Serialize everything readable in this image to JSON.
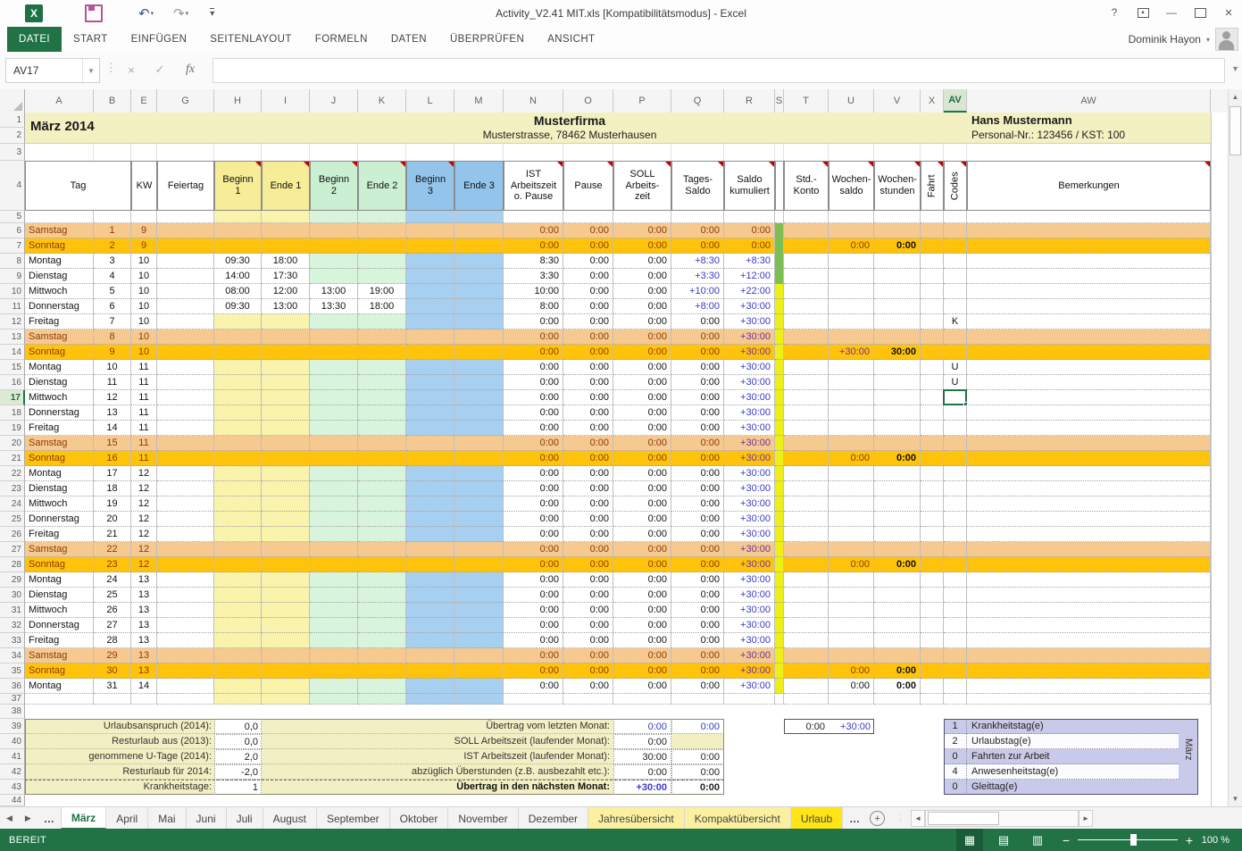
{
  "window": {
    "title": "Activity_V2.41 MIT.xls [Kompatibilitätsmodus] - Excel",
    "user": "Dominik Hayon",
    "controls": {
      "help": "?",
      "minimize": "—",
      "close": "×"
    }
  },
  "ribbon": {
    "active_tab": "DATEI",
    "tabs": [
      "DATEI",
      "START",
      "EINFÜGEN",
      "SEITENLAYOUT",
      "FORMELN",
      "DATEN",
      "ÜBERPRÜFEN",
      "ANSICHT"
    ]
  },
  "formula_bar": {
    "name_box": "AV17",
    "fx": "fx"
  },
  "grid": {
    "column_letters": [
      "A",
      "B",
      "E",
      "G",
      "H",
      "I",
      "J",
      "K",
      "L",
      "M",
      "N",
      "O",
      "P",
      "Q",
      "R",
      "S",
      "T",
      "U",
      "V",
      "X",
      "AV",
      "AW"
    ],
    "selected_cell": "AV17",
    "selected_column": "AV",
    "selected_row": 17,
    "doc_header": {
      "month_title": "März 2014",
      "company": "Musterfirma",
      "address": "Musterstrasse, 78462 Musterhausen",
      "employee": "Hans Mustermann",
      "personal": "Personal-Nr.: 123456 / KST: 100"
    },
    "table_header": [
      {
        "label": "Tag",
        "span": [
          "A",
          "B"
        ]
      },
      {
        "label": "KW",
        "span": [
          "E"
        ]
      },
      {
        "label": "Feiertag",
        "span": [
          "G"
        ]
      },
      {
        "label": "Beginn\n1",
        "span": [
          "H"
        ],
        "tint": "yellow",
        "comment": true
      },
      {
        "label": "Ende 1",
        "span": [
          "I"
        ],
        "tint": "yellow",
        "comment": true
      },
      {
        "label": "Beginn\n2",
        "span": [
          "J"
        ],
        "tint": "green",
        "comment": true
      },
      {
        "label": "Ende 2",
        "span": [
          "K"
        ],
        "tint": "green",
        "comment": true
      },
      {
        "label": "Beginn\n3",
        "span": [
          "L"
        ],
        "tint": "blue",
        "comment": true
      },
      {
        "label": "Ende 3",
        "span": [
          "M"
        ],
        "tint": "blue"
      },
      {
        "label": "IST\nArbeitszeit\no. Pause",
        "span": [
          "N"
        ],
        "comment": true
      },
      {
        "label": "Pause",
        "span": [
          "O"
        ],
        "comment": true
      },
      {
        "label": "SOLL\nArbeits-\nzeit",
        "span": [
          "P"
        ],
        "comment": true
      },
      {
        "label": "Tages-\nSaldo",
        "span": [
          "Q"
        ],
        "comment": true
      },
      {
        "label": "Saldo\nkumuliert",
        "span": [
          "R"
        ],
        "comment": true
      },
      {
        "label": "",
        "span": [
          "S"
        ]
      },
      {
        "label": "Std.-\nKonto",
        "span": [
          "T"
        ],
        "comment": true
      },
      {
        "label": "Wochen-\nsaldo",
        "span": [
          "U"
        ],
        "comment": true
      },
      {
        "label": "Wochen-\nstunden",
        "span": [
          "V"
        ],
        "comment": true
      },
      {
        "label": "Fahrt",
        "span": [
          "X"
        ],
        "vertical": true,
        "comment": true
      },
      {
        "label": "Codes",
        "span": [
          "AV"
        ],
        "vertical": true,
        "comment": true
      },
      {
        "label": "Bemerkungen",
        "span": [
          "AW"
        ],
        "comment": true
      }
    ],
    "day_rows": [
      {
        "n": 6,
        "day": "Samstag",
        "date": "1",
        "kw": "9",
        "kind": "sat",
        "ist": "0:00",
        "pause": "0:00",
        "soll": "0:00",
        "tages": "0:00",
        "kum": "0:00"
      },
      {
        "n": 7,
        "day": "Sonntag",
        "date": "2",
        "kw": "9",
        "kind": "sun",
        "ist": "0:00",
        "pause": "0:00",
        "soll": "0:00",
        "tages": "0:00",
        "kum": "0:00",
        "wsaldo": "0:00",
        "wstd": "0:00"
      },
      {
        "n": 8,
        "day": "Montag",
        "date": "3",
        "kw": "10",
        "kind": "wd",
        "b1": "09:30",
        "e1": "18:00",
        "ist": "8:30",
        "pause": "0:00",
        "soll": "0:00",
        "tages": "+8:30",
        "kum": "+8:30"
      },
      {
        "n": 9,
        "day": "Dienstag",
        "date": "4",
        "kw": "10",
        "kind": "wd",
        "b1": "14:00",
        "e1": "17:30",
        "ist": "3:30",
        "pause": "0:00",
        "soll": "0:00",
        "tages": "+3:30",
        "kum": "+12:00"
      },
      {
        "n": 10,
        "day": "Mittwoch",
        "date": "5",
        "kw": "10",
        "kind": "wd",
        "b1": "08:00",
        "e1": "12:00",
        "b2": "13:00",
        "e2": "19:00",
        "ist": "10:00",
        "pause": "0:00",
        "soll": "0:00",
        "tages": "+10:00",
        "kum": "+22:00"
      },
      {
        "n": 11,
        "day": "Donnerstag",
        "date": "6",
        "kw": "10",
        "kind": "wd",
        "b1": "09:30",
        "e1": "13:00",
        "b2": "13:30",
        "e2": "18:00",
        "ist": "8:00",
        "pause": "0:00",
        "soll": "0:00",
        "tages": "+8:00",
        "kum": "+30:00"
      },
      {
        "n": 12,
        "day": "Freitag",
        "date": "7",
        "kw": "10",
        "kind": "wd",
        "ist": "0:00",
        "pause": "0:00",
        "soll": "0:00",
        "tages": "0:00",
        "kum": "+30:00",
        "code": "K"
      },
      {
        "n": 13,
        "day": "Samstag",
        "date": "8",
        "kw": "10",
        "kind": "sat",
        "ist": "0:00",
        "pause": "0:00",
        "soll": "0:00",
        "tages": "0:00",
        "kum": "+30:00"
      },
      {
        "n": 14,
        "day": "Sonntag",
        "date": "9",
        "kw": "10",
        "kind": "sun",
        "ist": "0:00",
        "pause": "0:00",
        "soll": "0:00",
        "tages": "0:00",
        "kum": "+30:00",
        "wsaldo": "+30:00",
        "wstd": "30:00"
      },
      {
        "n": 15,
        "day": "Montag",
        "date": "10",
        "kw": "11",
        "kind": "wd",
        "ist": "0:00",
        "pause": "0:00",
        "soll": "0:00",
        "tages": "0:00",
        "kum": "+30:00",
        "code": "U"
      },
      {
        "n": 16,
        "day": "Dienstag",
        "date": "11",
        "kw": "11",
        "kind": "wd",
        "ist": "0:00",
        "pause": "0:00",
        "soll": "0:00",
        "tages": "0:00",
        "kum": "+30:00",
        "code": "U"
      },
      {
        "n": 17,
        "day": "Mittwoch",
        "date": "12",
        "kw": "11",
        "kind": "wd",
        "ist": "0:00",
        "pause": "0:00",
        "soll": "0:00",
        "tages": "0:00",
        "kum": "+30:00",
        "sel": true
      },
      {
        "n": 18,
        "day": "Donnerstag",
        "date": "13",
        "kw": "11",
        "kind": "wd",
        "ist": "0:00",
        "pause": "0:00",
        "soll": "0:00",
        "tages": "0:00",
        "kum": "+30:00"
      },
      {
        "n": 19,
        "day": "Freitag",
        "date": "14",
        "kw": "11",
        "kind": "wd",
        "ist": "0:00",
        "pause": "0:00",
        "soll": "0:00",
        "tages": "0:00",
        "kum": "+30:00"
      },
      {
        "n": 20,
        "day": "Samstag",
        "date": "15",
        "kw": "11",
        "kind": "sat",
        "ist": "0:00",
        "pause": "0:00",
        "soll": "0:00",
        "tages": "0:00",
        "kum": "+30:00"
      },
      {
        "n": 21,
        "day": "Sonntag",
        "date": "16",
        "kw": "11",
        "kind": "sun",
        "ist": "0:00",
        "pause": "0:00",
        "soll": "0:00",
        "tages": "0:00",
        "kum": "+30:00",
        "wsaldo": "0:00",
        "wstd": "0:00"
      },
      {
        "n": 22,
        "day": "Montag",
        "date": "17",
        "kw": "12",
        "kind": "wd",
        "ist": "0:00",
        "pause": "0:00",
        "soll": "0:00",
        "tages": "0:00",
        "kum": "+30:00"
      },
      {
        "n": 23,
        "day": "Dienstag",
        "date": "18",
        "kw": "12",
        "kind": "wd",
        "ist": "0:00",
        "pause": "0:00",
        "soll": "0:00",
        "tages": "0:00",
        "kum": "+30:00"
      },
      {
        "n": 24,
        "day": "Mittwoch",
        "date": "19",
        "kw": "12",
        "kind": "wd",
        "ist": "0:00",
        "pause": "0:00",
        "soll": "0:00",
        "tages": "0:00",
        "kum": "+30:00"
      },
      {
        "n": 25,
        "day": "Donnerstag",
        "date": "20",
        "kw": "12",
        "kind": "wd",
        "ist": "0:00",
        "pause": "0:00",
        "soll": "0:00",
        "tages": "0:00",
        "kum": "+30:00"
      },
      {
        "n": 26,
        "day": "Freitag",
        "date": "21",
        "kw": "12",
        "kind": "wd",
        "ist": "0:00",
        "pause": "0:00",
        "soll": "0:00",
        "tages": "0:00",
        "kum": "+30:00"
      },
      {
        "n": 27,
        "day": "Samstag",
        "date": "22",
        "kw": "12",
        "kind": "sat",
        "ist": "0:00",
        "pause": "0:00",
        "soll": "0:00",
        "tages": "0:00",
        "kum": "+30:00"
      },
      {
        "n": 28,
        "day": "Sonntag",
        "date": "23",
        "kw": "12",
        "kind": "sun",
        "ist": "0:00",
        "pause": "0:00",
        "soll": "0:00",
        "tages": "0:00",
        "kum": "+30:00",
        "wsaldo": "0:00",
        "wstd": "0:00"
      },
      {
        "n": 29,
        "day": "Montag",
        "date": "24",
        "kw": "13",
        "kind": "wd",
        "ist": "0:00",
        "pause": "0:00",
        "soll": "0:00",
        "tages": "0:00",
        "kum": "+30:00"
      },
      {
        "n": 30,
        "day": "Dienstag",
        "date": "25",
        "kw": "13",
        "kind": "wd",
        "ist": "0:00",
        "pause": "0:00",
        "soll": "0:00",
        "tages": "0:00",
        "kum": "+30:00"
      },
      {
        "n": 31,
        "day": "Mittwoch",
        "date": "26",
        "kw": "13",
        "kind": "wd",
        "ist": "0:00",
        "pause": "0:00",
        "soll": "0:00",
        "tages": "0:00",
        "kum": "+30:00"
      },
      {
        "n": 32,
        "day": "Donnerstag",
        "date": "27",
        "kw": "13",
        "kind": "wd",
        "ist": "0:00",
        "pause": "0:00",
        "soll": "0:00",
        "tages": "0:00",
        "kum": "+30:00"
      },
      {
        "n": 33,
        "day": "Freitag",
        "date": "28",
        "kw": "13",
        "kind": "wd",
        "ist": "0:00",
        "pause": "0:00",
        "soll": "0:00",
        "tages": "0:00",
        "kum": "+30:00"
      },
      {
        "n": 34,
        "day": "Samstag",
        "date": "29",
        "kw": "13",
        "kind": "sat",
        "ist": "0:00",
        "pause": "0:00",
        "soll": "0:00",
        "tages": "0:00",
        "kum": "+30:00"
      },
      {
        "n": 35,
        "day": "Sonntag",
        "date": "30",
        "kw": "13",
        "kind": "sun",
        "ist": "0:00",
        "pause": "0:00",
        "soll": "0:00",
        "tages": "0:00",
        "kum": "+30:00",
        "wsaldo": "0:00",
        "wstd": "0:00"
      },
      {
        "n": 36,
        "day": "Montag",
        "date": "31",
        "kw": "14",
        "kind": "wd",
        "ist": "0:00",
        "pause": "0:00",
        "soll": "0:00",
        "tages": "0:00",
        "kum": "+30:00",
        "wsaldo": "0:00",
        "wstd": "0:00"
      }
    ],
    "summary_left": [
      {
        "label": "Urlaubsanspruch (2014):",
        "value": "0,0"
      },
      {
        "label": "Resturlaub aus (2013):",
        "value": "0,0"
      },
      {
        "label": "genommene U-Tage (2014):",
        "value": "2,0"
      },
      {
        "label": "Resturlaub für 2014:",
        "value": "-2,0"
      },
      {
        "label": "Krankheitstage:",
        "value": "1"
      }
    ],
    "summary_mid": [
      {
        "label": "Übertrag vom letzten Monat:",
        "v1": "0:00",
        "v2": "0:00",
        "blue1": true,
        "blue2": true
      },
      {
        "label": "SOLL Arbeitszeit (laufender Monat):",
        "v1": "0:00",
        "v2": ""
      },
      {
        "label": "IST Arbeitszeit (laufender Monat):",
        "v1": "30:00",
        "v2": "0:00"
      },
      {
        "label": "abzüglich Überstunden (z.B. ausbezahlt etc.):",
        "v1": "0:00",
        "v2": "0:00"
      },
      {
        "label": "Übertrag in den nächsten Monat:",
        "v1": "+30:00",
        "v2": "0:00",
        "bold": true,
        "blue1": true
      }
    ],
    "hours_box": {
      "v1": "0:00",
      "v2": "+30:00"
    },
    "legend": {
      "month": "März",
      "rows": [
        {
          "count": "1",
          "label": "Krankheitstag(e)"
        },
        {
          "count": "2",
          "label": "Urlaubstag(e)"
        },
        {
          "count": "0",
          "label": "Fahrten zur Arbeit"
        },
        {
          "count": "4",
          "label": "Anwesenheitstag(e)"
        },
        {
          "count": "0",
          "label": "Gleittag(e)"
        }
      ]
    }
  },
  "sheet_tabs": {
    "overflow": "…",
    "tabs": [
      {
        "label": "März",
        "state": "active"
      },
      {
        "label": "April"
      },
      {
        "label": "Mai"
      },
      {
        "label": "Juni"
      },
      {
        "label": "Juli"
      },
      {
        "label": "August"
      },
      {
        "label": "September"
      },
      {
        "label": "Oktober"
      },
      {
        "label": "November"
      },
      {
        "label": "Dezember"
      },
      {
        "label": "Jahresübersicht",
        "state": "yellow"
      },
      {
        "label": "Kompaktübersicht",
        "state": "yellow"
      },
      {
        "label": "Urlaub",
        "state": "bright"
      }
    ]
  },
  "status_bar": {
    "ready": "BEREIT",
    "zoom": "100 %"
  },
  "colors": {
    "accent_green": "#217346",
    "saturday_row": "#F5C98F",
    "sunday_row": "#FFC30B",
    "tint_yellow": "#FAF3AC",
    "tint_green": "#D9F4DC",
    "tint_blue": "#A7D0F0",
    "header_yellow": "#F7EC98",
    "header_green": "#CBEFD2",
    "header_blue": "#93C5EC",
    "strip_green": "#7CBE4F",
    "strip_yellow": "#EEEE18",
    "saldo_blue": "#3A3AC8",
    "saldo_purple": "#7030A0",
    "weekend_text": "#8F3B0A",
    "band_yellow": "#F3F0C2",
    "summary_beige": "#F1EFC3",
    "legend_lavender": "#C9C9E9",
    "comment_red": "#C00000"
  }
}
